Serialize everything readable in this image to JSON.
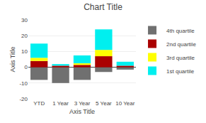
{
  "chart_data": {
    "type": "bar",
    "title": "Chart Title",
    "xlabel": "Axis Title",
    "ylabel": "Axis Title",
    "categories": [
      "YTD",
      "1 Year",
      "3 Year",
      "5 Year",
      "10 Year"
    ],
    "stacked": true,
    "series": [
      {
        "name": "4th quartile",
        "color": "#707070",
        "values": [
          -8,
          -10,
          -8,
          -3,
          -1.5
        ]
      },
      {
        "name": "2nd quartile",
        "color": "#AA0000",
        "values": [
          4,
          1,
          1.5,
          7,
          1
        ]
      },
      {
        "name": "3rd quartile",
        "color": "#FFFF00",
        "values": [
          2,
          0,
          1,
          4,
          0
        ]
      },
      {
        "name": "1st quartile",
        "color": "#00EFEF",
        "values": [
          9,
          1,
          5,
          13,
          2.5
        ]
      }
    ],
    "ylim": [
      -20,
      30
    ],
    "yticks": [
      -20,
      -10,
      0,
      10,
      20,
      30
    ],
    "grid": true,
    "legend": "upper right"
  }
}
